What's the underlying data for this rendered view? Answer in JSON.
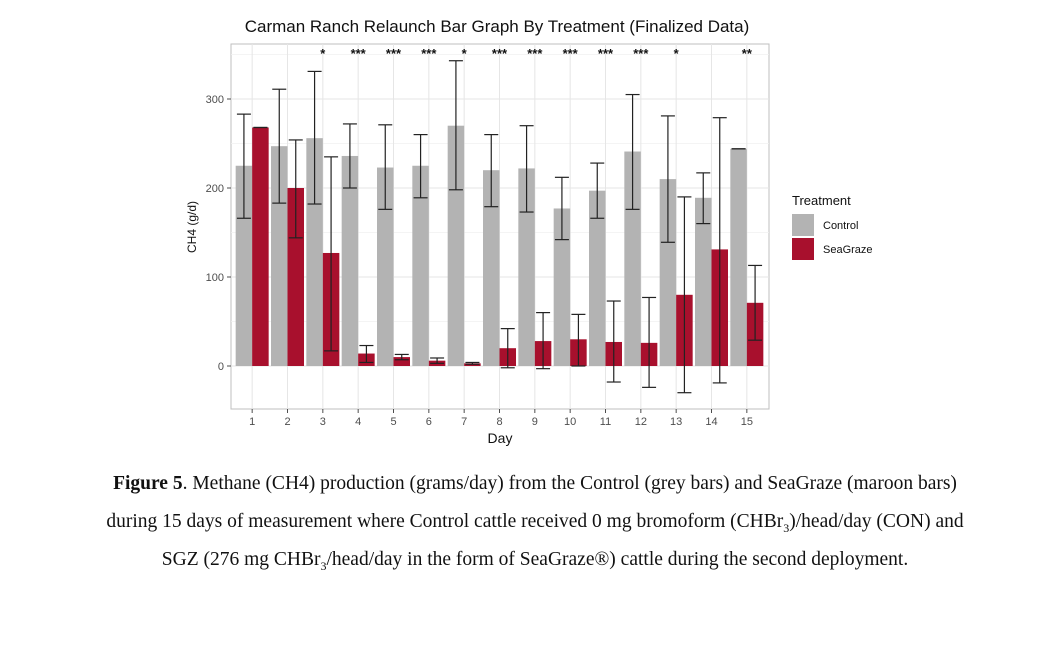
{
  "chart_data": {
    "type": "bar",
    "title": "Carman Ranch Relaunch Bar Graph By Treatment (Finalized Data)",
    "xlabel": "Day",
    "ylabel": "CH4 (g/d)",
    "categories": [
      "1",
      "2",
      "3",
      "4",
      "5",
      "6",
      "7",
      "8",
      "9",
      "10",
      "11",
      "12",
      "13",
      "14",
      "15"
    ],
    "ylim": [
      -47,
      360
    ],
    "yticks": [
      0,
      100,
      200,
      300
    ],
    "series": [
      {
        "name": "Control",
        "color": "#b3b3b3",
        "values": [
          225,
          247,
          256,
          236,
          223,
          225,
          270,
          220,
          222,
          177,
          197,
          241,
          210,
          189,
          244
        ],
        "err_low": [
          166,
          183,
          182,
          200,
          176,
          189,
          198,
          179,
          173,
          142,
          166,
          176,
          139,
          160,
          244
        ],
        "err_high": [
          283,
          311,
          331,
          272,
          271,
          260,
          343,
          260,
          270,
          212,
          228,
          305,
          281,
          217,
          244
        ]
      },
      {
        "name": "SeaGraze",
        "color": "#a8102d",
        "values": [
          268,
          200,
          127,
          14,
          10,
          6,
          3,
          20,
          28,
          30,
          27,
          26,
          80,
          131,
          71
        ],
        "err_low": [
          268,
          144,
          17,
          4,
          7,
          3,
          2,
          -2,
          -3,
          0,
          -18,
          -24,
          -30,
          -19,
          29
        ],
        "err_high": [
          268,
          254,
          235,
          23,
          13,
          9,
          4,
          42,
          60,
          58,
          73,
          77,
          190,
          279,
          113
        ]
      }
    ],
    "significance": [
      "",
      "",
      "*",
      "***",
      "***",
      "***",
      "*",
      "***",
      "***",
      "***",
      "***",
      "***",
      "*",
      "",
      "**"
    ],
    "legend": {
      "title": "Treatment",
      "position": "right",
      "entries": [
        "Control",
        "SeaGraze"
      ]
    },
    "grid": true
  },
  "caption": {
    "label": "Figure 5",
    "text": ". Methane (CH4) production (grams/day) from the Control (grey bars) and SeaGraze (maroon bars) during 15 days of measurement where Control cattle received 0 mg bromoform (CHBr",
    "sub1": "3",
    "text2": ")/head/day (CON) and SGZ (276 mg CHBr",
    "sub2": "3",
    "text3": "/head/day in the form of SeaGraze®) cattle during the second deployment."
  }
}
